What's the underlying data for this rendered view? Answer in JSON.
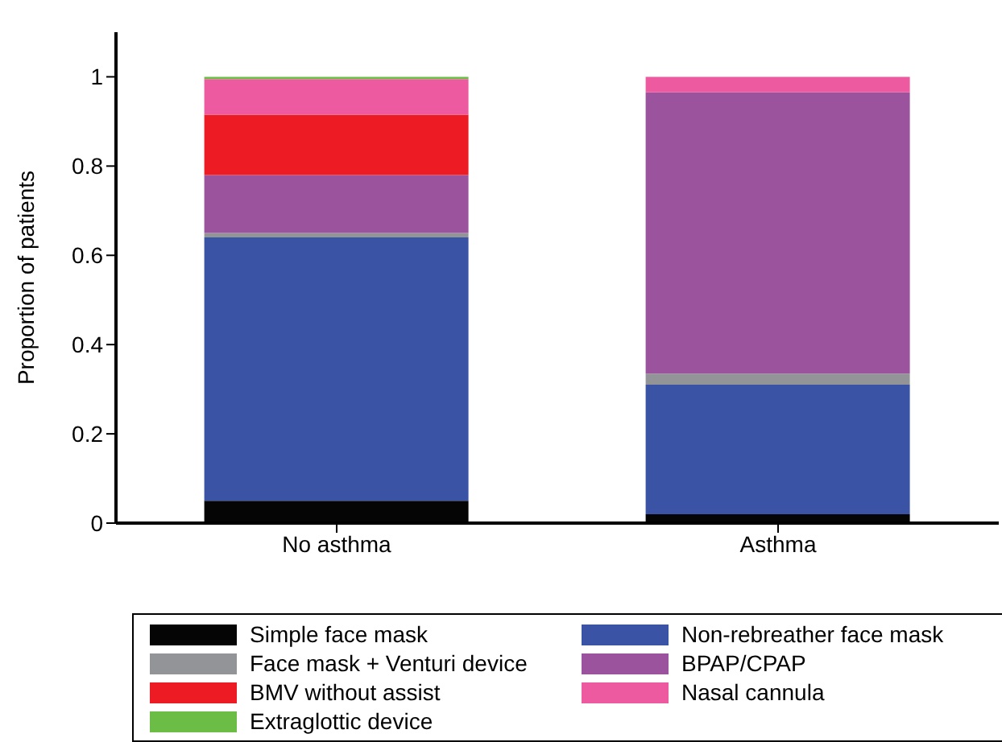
{
  "chart_data": {
    "type": "bar",
    "stacked": true,
    "ylabel": "Proportion of patients",
    "categories": [
      "No asthma",
      "Asthma"
    ],
    "series": [
      {
        "name": "Simple face mask",
        "color": "#050505",
        "values": [
          0.05,
          0.02
        ]
      },
      {
        "name": "Non-rebreather face mask",
        "color": "#3a53a4",
        "values": [
          0.59,
          0.29
        ]
      },
      {
        "name": "Face mask + Venturi device",
        "color": "#929497",
        "values": [
          0.01,
          0.025
        ]
      },
      {
        "name": "BPAP/CPAP",
        "color": "#9b539e",
        "values": [
          0.13,
          0.63
        ]
      },
      {
        "name": "BMV without assist",
        "color": "#ed1c24",
        "values": [
          0.135,
          0
        ]
      },
      {
        "name": "Nasal cannula",
        "color": "#ee5a9f",
        "values": [
          0.08,
          0.035
        ]
      },
      {
        "name": "Extraglottic device",
        "color": "#6cbd45",
        "values": [
          0.005,
          0
        ]
      }
    ],
    "ylim": [
      0,
      1.1
    ],
    "yticks": [
      0,
      0.2,
      0.4,
      0.6,
      0.8,
      1
    ],
    "grid": false,
    "legend": "bottom"
  }
}
